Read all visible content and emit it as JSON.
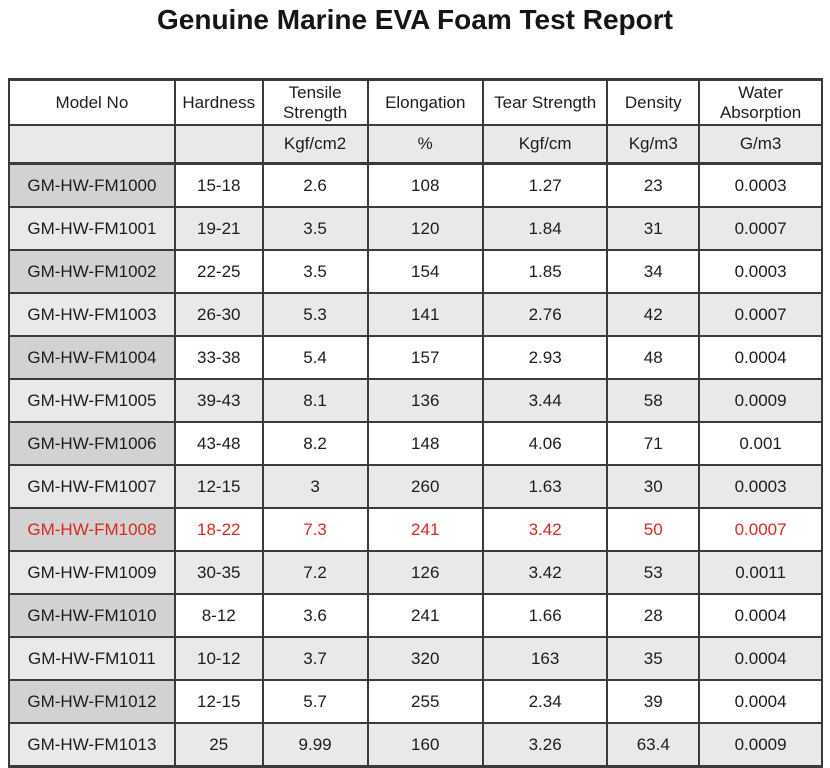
{
  "title": "Genuine Marine EVA Foam Test Report",
  "colors": {
    "highlight_text": "#d42a22",
    "model_column_bg": "#d2d2d2",
    "shaded_row_bg": "#e9e9e9",
    "border": "#3b3b3b"
  },
  "table": {
    "columns": [
      {
        "label": "Model No",
        "unit": ""
      },
      {
        "label": "Hardness",
        "unit": ""
      },
      {
        "label": "Tensile Strength",
        "unit": "Kgf/cm2"
      },
      {
        "label": "Elongation",
        "unit": "%"
      },
      {
        "label": "Tear Strength",
        "unit": "Kgf/cm"
      },
      {
        "label": "Density",
        "unit": "Kg/m3"
      },
      {
        "label": "Water Absorption",
        "unit": "G/m3"
      }
    ],
    "rows": [
      {
        "model": "GM-HW-FM1000",
        "hardness": "15-18",
        "tensile": "2.6",
        "elongation": "108",
        "tear": "1.27",
        "density": "23",
        "water": "0.0003",
        "highlight": false
      },
      {
        "model": "GM-HW-FM1001",
        "hardness": "19-21",
        "tensile": "3.5",
        "elongation": "120",
        "tear": "1.84",
        "density": "31",
        "water": "0.0007",
        "highlight": false
      },
      {
        "model": "GM-HW-FM1002",
        "hardness": "22-25",
        "tensile": "3.5",
        "elongation": "154",
        "tear": "1.85",
        "density": "34",
        "water": "0.0003",
        "highlight": false
      },
      {
        "model": "GM-HW-FM1003",
        "hardness": "26-30",
        "tensile": "5.3",
        "elongation": "141",
        "tear": "2.76",
        "density": "42",
        "water": "0.0007",
        "highlight": false
      },
      {
        "model": "GM-HW-FM1004",
        "hardness": "33-38",
        "tensile": "5.4",
        "elongation": "157",
        "tear": "2.93",
        "density": "48",
        "water": "0.0004",
        "highlight": false
      },
      {
        "model": "GM-HW-FM1005",
        "hardness": "39-43",
        "tensile": "8.1",
        "elongation": "136",
        "tear": "3.44",
        "density": "58",
        "water": "0.0009",
        "highlight": false
      },
      {
        "model": "GM-HW-FM1006",
        "hardness": "43-48",
        "tensile": "8.2",
        "elongation": "148",
        "tear": "4.06",
        "density": "71",
        "water": "0.001",
        "highlight": false
      },
      {
        "model": "GM-HW-FM1007",
        "hardness": "12-15",
        "tensile": "3",
        "elongation": "260",
        "tear": "1.63",
        "density": "30",
        "water": "0.0003",
        "highlight": false
      },
      {
        "model": "GM-HW-FM1008",
        "hardness": "18-22",
        "tensile": "7.3",
        "elongation": "241",
        "tear": "3.42",
        "density": "50",
        "water": "0.0007",
        "highlight": true
      },
      {
        "model": "GM-HW-FM1009",
        "hardness": "30-35",
        "tensile": "7.2",
        "elongation": "126",
        "tear": "3.42",
        "density": "53",
        "water": "0.0011",
        "highlight": false
      },
      {
        "model": "GM-HW-FM1010",
        "hardness": "8-12",
        "tensile": "3.6",
        "elongation": "241",
        "tear": "1.66",
        "density": "28",
        "water": "0.0004",
        "highlight": false
      },
      {
        "model": "GM-HW-FM1011",
        "hardness": "10-12",
        "tensile": "3.7",
        "elongation": "320",
        "tear": "163",
        "density": "35",
        "water": "0.0004",
        "highlight": false
      },
      {
        "model": "GM-HW-FM1012",
        "hardness": "12-15",
        "tensile": "5.7",
        "elongation": "255",
        "tear": "2.34",
        "density": "39",
        "water": "0.0004",
        "highlight": false
      },
      {
        "model": "GM-HW-FM1013",
        "hardness": "25",
        "tensile": "9.99",
        "elongation": "160",
        "tear": "3.26",
        "density": "63.4",
        "water": "0.0009",
        "highlight": false
      }
    ]
  }
}
